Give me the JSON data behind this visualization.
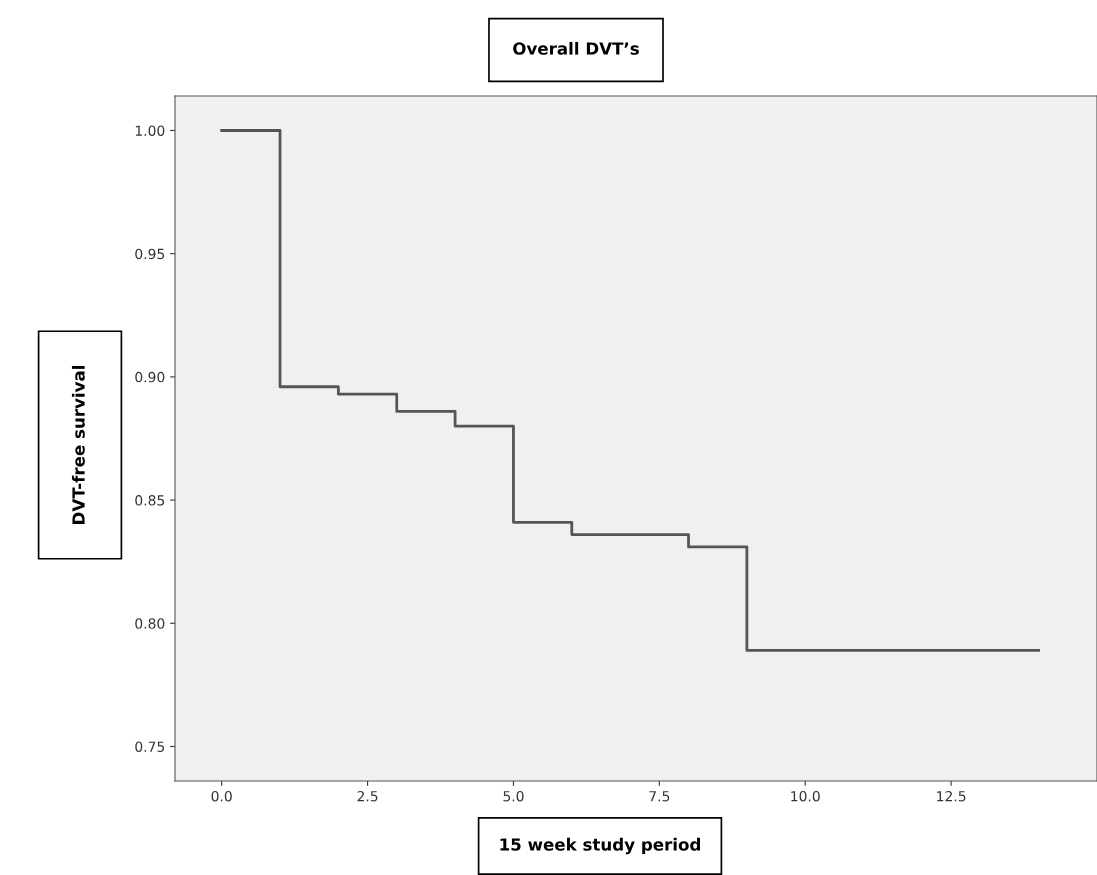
{
  "chart_data": {
    "type": "step",
    "title": "Overall DVT’s",
    "xlabel": "15 week study period",
    "ylabel": "DVT-free survival",
    "x": [
      0,
      1,
      2,
      3,
      4,
      5,
      6,
      8,
      9,
      14
    ],
    "series": [
      {
        "color": "#555555",
        "values": [
          1.0,
          0.896,
          0.893,
          0.886,
          0.88,
          0.841,
          0.836,
          0.831,
          0.789,
          0.789
        ]
      }
    ],
    "xlim": [
      -0.8,
      15.0
    ],
    "xticks": [
      {
        "value": 0,
        "label": "0.0"
      },
      2.5,
      {
        "value": 5,
        "label": "5.0"
      },
      7.5,
      {
        "value": 10,
        "label": "10.0"
      },
      12.5
    ],
    "ylim": [
      0.736,
      1.014
    ],
    "yticks": [
      {
        "value": 0.75,
        "label": "0.75"
      },
      {
        "value": 0.8,
        "label": "0.80"
      },
      {
        "value": 0.85,
        "label": "0.85"
      },
      {
        "value": 0.9,
        "label": "0.90"
      },
      {
        "value": 0.95,
        "label": "0.95"
      },
      {
        "value": 1.0,
        "label": "1.00"
      }
    ],
    "grid": false,
    "legend": false
  }
}
